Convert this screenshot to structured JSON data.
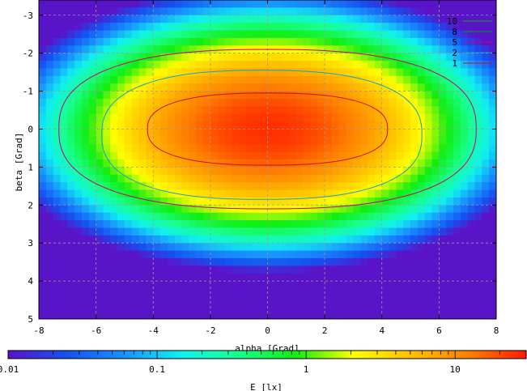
{
  "chart_data": {
    "type": "heatmap",
    "title": "",
    "xlabel": "alpha [Grad]",
    "ylabel": "beta [Grad]",
    "xlim": [
      -8,
      8
    ],
    "ylim": [
      -3.4,
      5
    ],
    "y_inverted": true,
    "x_ticks": [
      "-8",
      "-6",
      "-4",
      "-2",
      "0",
      "2",
      "4",
      "6",
      "8"
    ],
    "y_ticks": [
      "-3",
      "-2",
      "-1",
      "0",
      "1",
      "2",
      "3",
      "4",
      "5"
    ],
    "grid": true,
    "colorbar": {
      "label": "E [lx]",
      "scale": "log",
      "range": [
        0.01,
        30
      ],
      "ticks": [
        "0.01",
        "0.1",
        "1",
        "10"
      ],
      "colors": [
        "#5a14c8",
        "#1650f0",
        "#1890ff",
        "#10f0f0",
        "#18ff8c",
        "#10ee10",
        "#ffff00",
        "#ffc000",
        "#ff8000",
        "#ff1a00"
      ]
    },
    "contour_levels": [
      {
        "label": "10",
        "color": "#00b400"
      },
      {
        "label": "8",
        "color": "#00a000"
      },
      {
        "label": "5",
        "color": "#c8007a"
      },
      {
        "label": "2",
        "color": "#18a0c8"
      },
      {
        "label": "1",
        "color": "#c81010"
      }
    ],
    "contours": [
      {
        "level": "5",
        "center": [
          0,
          0
        ],
        "rx": 7.3,
        "ry": 2.1
      },
      {
        "level": "2",
        "center": [
          -0.2,
          0.15
        ],
        "rx": 5.6,
        "ry": 1.7
      },
      {
        "level": "1",
        "center": [
          0,
          0
        ],
        "rx": 4.2,
        "ry": 0.95
      }
    ],
    "field": {
      "peak_lux": 25,
      "peak_at": [
        0,
        0
      ],
      "decay_x": 0.085,
      "decay_y": 0.55
    }
  }
}
